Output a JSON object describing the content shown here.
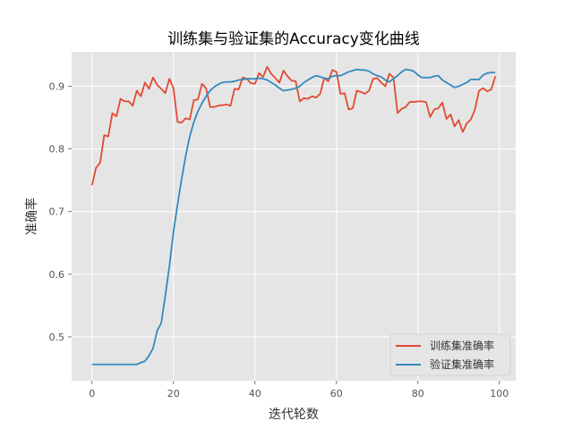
{
  "chart_data": {
    "type": "line",
    "title": "训练集与验证集的Accuracy变化曲线",
    "xlabel": "迭代轮数",
    "ylabel": "准确率",
    "xlim": [
      -5,
      104
    ],
    "ylim": [
      0.43,
      0.955
    ],
    "xticks": [
      0,
      20,
      40,
      60,
      80,
      100
    ],
    "yticks": [
      0.5,
      0.6,
      0.7,
      0.8,
      0.9
    ],
    "grid": true,
    "legend_position": "lower right",
    "background": "#e5e5e5",
    "series": [
      {
        "name": "训练集准确率",
        "color": "#e24a33",
        "x": [
          0,
          1,
          2,
          3,
          4,
          5,
          6,
          7,
          8,
          9,
          10,
          11,
          12,
          13,
          14,
          15,
          16,
          17,
          18,
          19,
          20,
          21,
          22,
          23,
          24,
          25,
          26,
          27,
          28,
          29,
          30,
          31,
          32,
          33,
          34,
          35,
          36,
          37,
          38,
          39,
          40,
          41,
          42,
          43,
          44,
          45,
          46,
          47,
          48,
          49,
          50,
          51,
          52,
          53,
          54,
          55,
          56,
          57,
          58,
          59,
          60,
          61,
          62,
          63,
          64,
          65,
          66,
          67,
          68,
          69,
          70,
          71,
          72,
          73,
          74,
          75,
          76,
          77,
          78,
          79,
          80,
          81,
          82,
          83,
          84,
          85,
          86,
          87,
          88,
          89,
          90,
          91,
          92,
          93,
          94,
          95,
          96,
          97,
          98,
          99
        ],
        "values": [
          0.742,
          0.77,
          0.778,
          0.822,
          0.82,
          0.857,
          0.852,
          0.88,
          0.876,
          0.876,
          0.869,
          0.893,
          0.884,
          0.906,
          0.896,
          0.914,
          0.902,
          0.896,
          0.889,
          0.912,
          0.897,
          0.843,
          0.842,
          0.849,
          0.847,
          0.878,
          0.879,
          0.904,
          0.897,
          0.867,
          0.867,
          0.869,
          0.87,
          0.871,
          0.869,
          0.896,
          0.895,
          0.914,
          0.912,
          0.905,
          0.904,
          0.921,
          0.915,
          0.931,
          0.92,
          0.913,
          0.906,
          0.925,
          0.916,
          0.909,
          0.908,
          0.876,
          0.881,
          0.88,
          0.884,
          0.882,
          0.888,
          0.913,
          0.908,
          0.926,
          0.923,
          0.888,
          0.889,
          0.863,
          0.865,
          0.893,
          0.891,
          0.888,
          0.893,
          0.912,
          0.913,
          0.906,
          0.9,
          0.92,
          0.914,
          0.857,
          0.864,
          0.867,
          0.875,
          0.875,
          0.876,
          0.876,
          0.875,
          0.851,
          0.863,
          0.865,
          0.874,
          0.848,
          0.855,
          0.836,
          0.846,
          0.827,
          0.841,
          0.847,
          0.863,
          0.893,
          0.897,
          0.892,
          0.895,
          0.916
        ]
      },
      {
        "name": "验证集准确率",
        "color": "#348abd",
        "x": [
          0,
          1,
          2,
          3,
          4,
          5,
          6,
          7,
          8,
          9,
          10,
          11,
          12,
          13,
          14,
          15,
          16,
          17,
          18,
          19,
          20,
          21,
          22,
          23,
          24,
          25,
          26,
          27,
          28,
          29,
          30,
          31,
          32,
          33,
          34,
          35,
          36,
          37,
          38,
          39,
          40,
          41,
          42,
          43,
          44,
          45,
          46,
          47,
          48,
          49,
          50,
          51,
          52,
          53,
          54,
          55,
          56,
          57,
          58,
          59,
          60,
          61,
          62,
          63,
          64,
          65,
          66,
          67,
          68,
          69,
          70,
          71,
          72,
          73,
          74,
          75,
          76,
          77,
          78,
          79,
          80,
          81,
          82,
          83,
          84,
          85,
          86,
          87,
          88,
          89,
          90,
          91,
          92,
          93,
          94,
          95,
          96,
          97,
          98,
          99
        ],
        "values": [
          0.456,
          0.456,
          0.456,
          0.456,
          0.456,
          0.456,
          0.456,
          0.456,
          0.456,
          0.456,
          0.456,
          0.456,
          0.459,
          0.461,
          0.47,
          0.482,
          0.51,
          0.522,
          0.566,
          0.613,
          0.668,
          0.711,
          0.752,
          0.789,
          0.82,
          0.843,
          0.86,
          0.873,
          0.884,
          0.893,
          0.899,
          0.903,
          0.906,
          0.907,
          0.907,
          0.908,
          0.91,
          0.911,
          0.912,
          0.912,
          0.912,
          0.913,
          0.912,
          0.91,
          0.906,
          0.902,
          0.897,
          0.893,
          0.894,
          0.895,
          0.897,
          0.9,
          0.906,
          0.91,
          0.914,
          0.917,
          0.915,
          0.913,
          0.912,
          0.916,
          0.917,
          0.917,
          0.92,
          0.923,
          0.925,
          0.927,
          0.926,
          0.926,
          0.924,
          0.92,
          0.917,
          0.915,
          0.91,
          0.907,
          0.912,
          0.917,
          0.923,
          0.927,
          0.926,
          0.924,
          0.918,
          0.914,
          0.914,
          0.914,
          0.916,
          0.917,
          0.91,
          0.906,
          0.902,
          0.898,
          0.9,
          0.903,
          0.906,
          0.911,
          0.911,
          0.911,
          0.918,
          0.921,
          0.922,
          0.922
        ]
      }
    ]
  }
}
